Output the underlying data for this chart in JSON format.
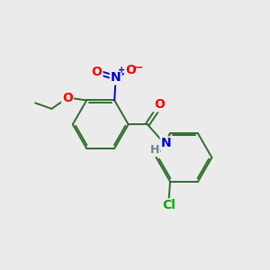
{
  "background_color": "#ebebeb",
  "bond_color": "#2d6e2d",
  "atom_colors": {
    "O": "#ff0000",
    "N": "#0000cd",
    "H": "#708090",
    "Cl": "#00aa00",
    "C": "#2d6e2d"
  },
  "lw": 1.4,
  "fs": 10,
  "fs_small": 9
}
